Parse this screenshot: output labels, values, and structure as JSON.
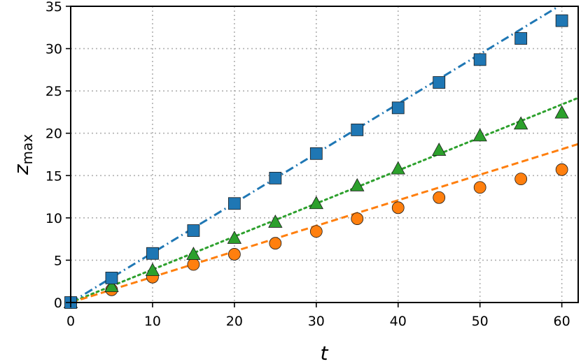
{
  "chart_data": {
    "type": "scatter",
    "xlabel": "t",
    "ylabel_main": "z",
    "ylabel_sub": "max",
    "xlim": [
      0,
      62
    ],
    "ylim": [
      0,
      35
    ],
    "grid": true,
    "xticks": [
      0,
      10,
      20,
      30,
      40,
      50,
      60
    ],
    "yticks": [
      0,
      5,
      10,
      15,
      20,
      25,
      30,
      35
    ],
    "series": [
      {
        "marker": "square",
        "color": "#1f77b4",
        "x": [
          0,
          5,
          10,
          15,
          20,
          25,
          30,
          35,
          40,
          45,
          50,
          55,
          60
        ],
        "y": [
          0.0,
          2.9,
          5.8,
          8.5,
          11.7,
          14.7,
          17.6,
          20.4,
          23.0,
          26.0,
          28.7,
          31.2,
          33.3
        ]
      },
      {
        "marker": "triangle",
        "color": "#2ca02c",
        "x": [
          0,
          5,
          10,
          15,
          20,
          25,
          30,
          35,
          40,
          45,
          50,
          55,
          60
        ],
        "y": [
          0.0,
          1.9,
          3.8,
          5.7,
          7.6,
          9.5,
          11.7,
          13.8,
          15.8,
          18.0,
          19.7,
          21.1,
          22.4
        ]
      },
      {
        "marker": "circle",
        "color": "#ff7f0e",
        "x": [
          0,
          5,
          10,
          15,
          20,
          25,
          30,
          35,
          40,
          45,
          50,
          55,
          60
        ],
        "y": [
          0.0,
          1.5,
          3.0,
          4.5,
          5.7,
          7.0,
          8.4,
          9.9,
          11.2,
          12.4,
          13.6,
          14.6,
          15.7
        ]
      }
    ],
    "fit_lines": [
      {
        "color": "#1f77b4",
        "style": "dashdot",
        "slope": 0.587
      },
      {
        "color": "#2ca02c",
        "style": "dotted",
        "slope": 0.39
      },
      {
        "color": "#ff7f0e",
        "style": "dashed",
        "slope": 0.302
      }
    ]
  }
}
